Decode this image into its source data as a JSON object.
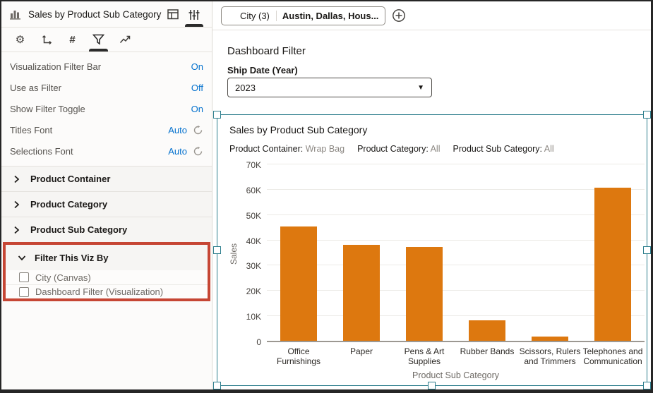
{
  "panel": {
    "title": "Sales by Product Sub Category",
    "header_tabs": [
      {
        "name": "grammar-panel",
        "icon": "grid",
        "active": false
      },
      {
        "name": "properties-panel",
        "icon": "sliders",
        "active": true
      }
    ],
    "tool_tabs": [
      {
        "name": "general",
        "icon": "gear",
        "active": false
      },
      {
        "name": "axes",
        "icon": "axis-arrows",
        "active": false
      },
      {
        "name": "values",
        "icon": "#",
        "active": false
      },
      {
        "name": "filters",
        "icon": "funnel",
        "active": true
      },
      {
        "name": "analytics",
        "icon": "trend-arrow",
        "active": false
      }
    ],
    "properties": [
      {
        "label": "Visualization Filter Bar",
        "value": "On"
      },
      {
        "label": "Use as Filter",
        "value": "Off"
      },
      {
        "label": "Show Filter Toggle",
        "value": "On"
      },
      {
        "label": "Titles Font",
        "value": "Auto",
        "reset_icon": true
      },
      {
        "label": "Selections Font",
        "value": "Auto",
        "reset_icon": true
      }
    ],
    "sections": [
      {
        "label": "Product Container",
        "expanded": false,
        "highlighted": false
      },
      {
        "label": "Product Category",
        "expanded": false,
        "highlighted": false
      },
      {
        "label": "Product Sub Category",
        "expanded": false,
        "highlighted": false
      },
      {
        "label": "Filter This Viz By",
        "expanded": true,
        "highlighted": true,
        "items": [
          {
            "label": "City (Canvas)",
            "checked": false
          },
          {
            "label": "Dashboard Filter (Visualization)",
            "checked": false
          }
        ]
      }
    ]
  },
  "filter_bar": {
    "pill_label": "City (3)",
    "pill_value": "Austin, Dallas, Hous...",
    "add_icon": "plus-circle"
  },
  "canvas": {
    "dashboard_filter_title": "Dashboard Filter",
    "ship_date_label": "Ship Date (Year)",
    "ship_date_value": "2023",
    "viz_title": "Sales by Product Sub Category",
    "viz_filters": [
      {
        "label": "Product Container:",
        "value": "Wrap Bag"
      },
      {
        "label": "Product Category:",
        "value": "All"
      },
      {
        "label": "Product Sub Category:",
        "value": "All"
      }
    ]
  },
  "chart_data": {
    "type": "bar",
    "title": "Sales by Product Sub Category",
    "categories": [
      "Office Furnishings",
      "Paper",
      "Pens & Art Supplies",
      "Rubber Bands",
      "Scissors, Rulers and Trimmers",
      "Telephones and Communication"
    ],
    "values": [
      45300,
      37800,
      37200,
      8200,
      1800,
      60400
    ],
    "xlabel": "Product Sub Category",
    "ylabel": "Sales",
    "ylim": [
      0,
      70000
    ],
    "ytick_step": 10000,
    "ytick_labels": [
      "0",
      "10K",
      "20K",
      "30K",
      "40K",
      "50K",
      "60K",
      "70K"
    ],
    "bar_color": "#DD780F",
    "grid": true,
    "legend": false
  },
  "icons": {
    "viz-type": "bar-chart",
    "grammar-panel": "grid",
    "properties-panel": "sliders",
    "filters": "funnel",
    "font-reset": "circular-arrow",
    "add-filter": "plus-circle",
    "dropdown-caret": "▼",
    "chevron-collapsed": "›",
    "chevron-expanded": "⌄"
  },
  "colors": {
    "accent_blue": "#0572CE",
    "selection_teal": "#2C7D8C",
    "highlight_red": "#C64634",
    "bar_orange": "#DD780F"
  }
}
